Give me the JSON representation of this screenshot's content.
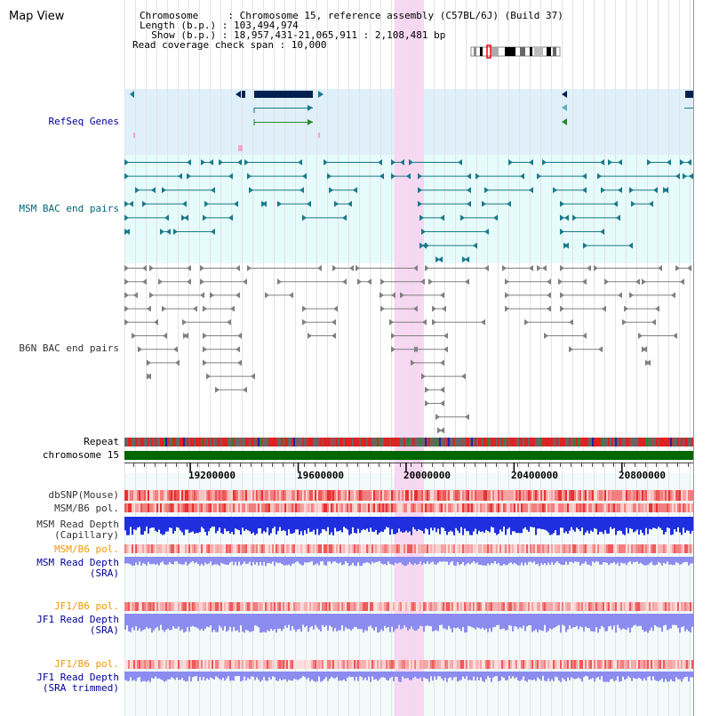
{
  "header": {
    "title": "Map View",
    "info_lines": [
      "Chromosome     : Chromosome 15, reference assembly (C57BL/6J) (Build 37)",
      "Length (b.p.) : 103,494,974",
      "  Show (b.p.) : 18,957,431-21,065,911 : 2,108,481 bp",
      "Read coverage check span : 10,000"
    ]
  },
  "tracks": {
    "refseq_genes": "RefSeq Genes",
    "msm_bac": "MSM BAC end pairs",
    "b6n_bac": "B6N BAC end pairs",
    "repeat": "Repeat",
    "chromosome": "chromosome 15",
    "dbsnp": "dbSNP(Mouse)",
    "msm_b6_pol_1": "MSM/B6 pol.",
    "msm_depth_cap_1": "MSM Read Depth",
    "msm_depth_cap_2": "(Capillary)",
    "msm_b6_pol_2": "MSM/B6 pol.",
    "msm_depth_sra_1": "MSM Read Depth",
    "msm_depth_sra_2": "(SRA)",
    "jf1_b6_pol_1": "JF1/B6 pol.",
    "jf1_depth_sra_1": "JF1 Read Depth",
    "jf1_depth_sra_2": "(SRA)",
    "jf1_b6_pol_2": "JF1/B6 pol.",
    "jf1_depth_trim_1": "JF1 Read Depth",
    "jf1_depth_trim_2": "(SRA trimmed)"
  },
  "axis": {
    "ticks": [
      "19200000",
      "19600000",
      "20000000",
      "20400000",
      "20800000"
    ],
    "tick_values": [
      19200000,
      19600000,
      20000000,
      20400000,
      20800000
    ],
    "range_bp": [
      18957431,
      21065911
    ]
  },
  "highlight_region_bp": [
    19958000,
    20064000
  ],
  "colors": {
    "label_blue": "#000099",
    "label_teal": "#006677",
    "label_orange": "#ee9900",
    "refseq_bg": "#dff0fa",
    "msm_bg": "#e6fbfb",
    "highlight": "#f7d7f2",
    "chromosome_bar": "#006600",
    "depth_dark": "#1f2fe0",
    "depth_light": "#8c8cf0",
    "msm_teal": "#1a7a8a",
    "b6n_gray": "#808080"
  }
}
